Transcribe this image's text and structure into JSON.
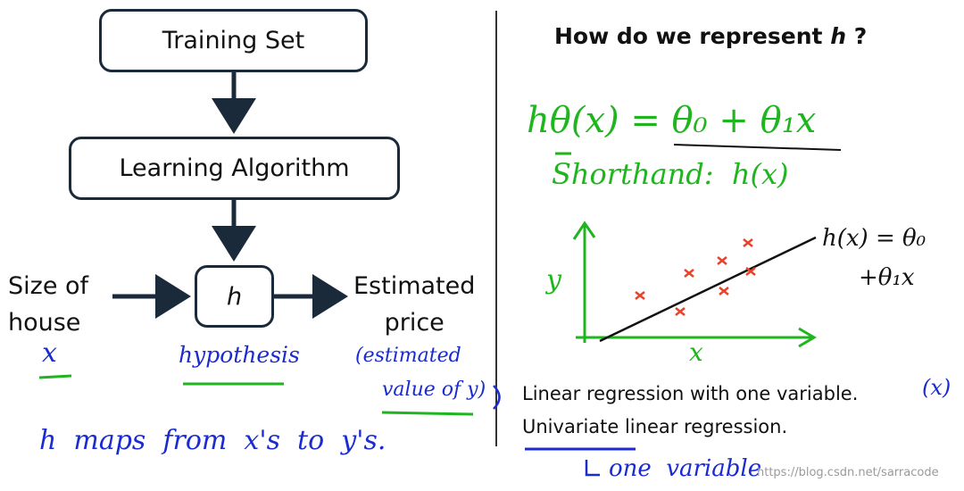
{
  "left": {
    "training_set": "Training Set",
    "learning_algorithm": "Learning Algorithm",
    "h_box": "h",
    "input_label_1": "Size of",
    "input_label_2": "house",
    "output_label_1": "Estimated",
    "output_label_2": "price",
    "hand_x": "x",
    "hand_hypothesis": "hypothesis",
    "hand_estimated_1": "(estimated",
    "hand_estimated_2": "value of y)",
    "hand_maps": "h  maps  from  x's  to  y's."
  },
  "right": {
    "title": "How do we represent",
    "title_h": "h",
    "title_q": "?",
    "formula": "hθ(x) = θ₀ + θ₁x",
    "shorthand": "Shorthand:  h(x)",
    "plot_ylabel": "y",
    "plot_xlabel": "x",
    "plot_annot_1": "h(x) = θ₀",
    "plot_annot_2": "+θ₁x",
    "line1": "Linear regression with one variable.",
    "line1_hand": "(x)",
    "line2": "Univariate linear regression.",
    "line2_hand": "one  variable"
  },
  "watermark": "https://blog.csdn.net/sarracode",
  "colors": {
    "blue_ink": "#1a2bd0",
    "green_ink": "#1fb51f",
    "red_ink": "#e8432a",
    "box_border": "#1b2a3a"
  }
}
